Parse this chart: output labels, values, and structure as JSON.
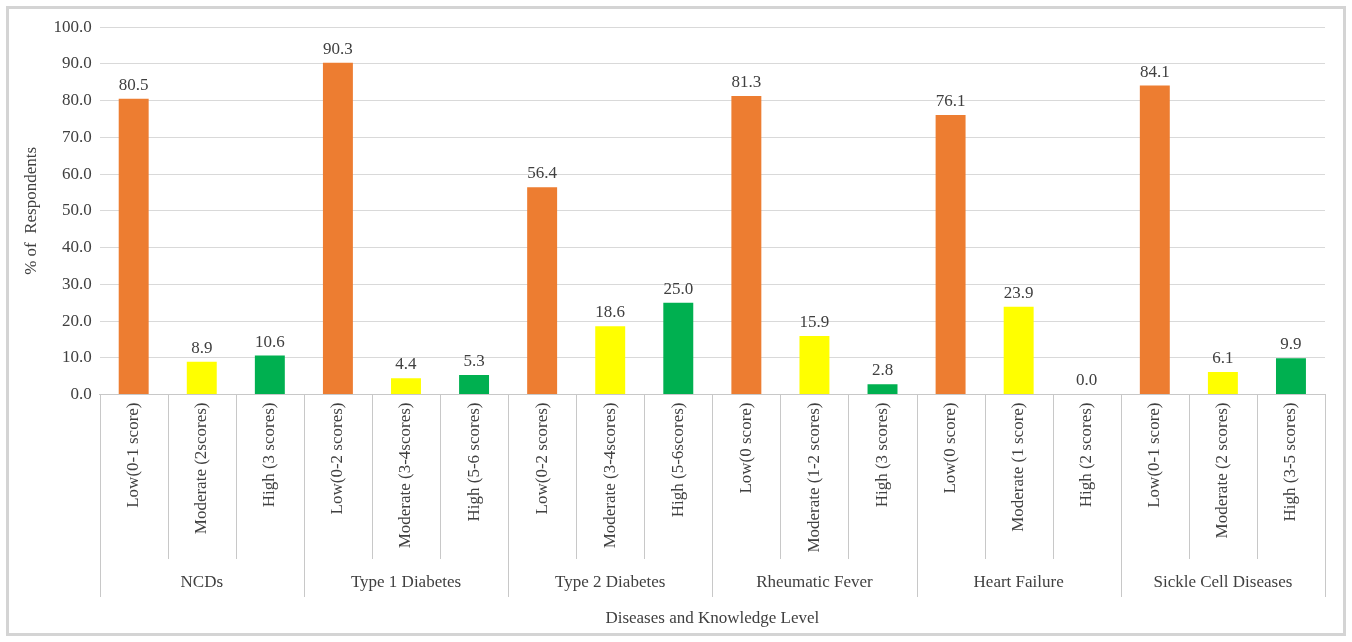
{
  "chart_data": {
    "type": "bar",
    "xlabel": "Diseases and Knowledge Level",
    "ylabel": "% of  Respondents",
    "categories": [
      "Low(0-1 score)",
      "Moderate (2scores)",
      "High (3 scores)",
      "Low(0-2 scores)",
      "Moderate (3-4scores)",
      "High (5-6 scores)",
      "Low(0-2 scores)",
      "Moderate (3-4scores)",
      "High (5-6scores)",
      "Low(0 score)",
      "Moderate (1-2 scores)",
      "High (3 scores)",
      "Low(0 score)",
      "Moderate (1 score)",
      "High (2 scores)",
      "Low(0-1 score)",
      "Moderate (2 scores)",
      "High (3-5 scores)"
    ],
    "values": [
      80.5,
      8.9,
      10.6,
      90.3,
      4.4,
      5.3,
      56.4,
      18.6,
      25.0,
      81.3,
      15.9,
      2.8,
      76.1,
      23.9,
      0.0,
      84.1,
      6.1,
      9.9
    ],
    "value_labels": [
      "80.5",
      "8.9",
      "10.6",
      "90.3",
      "4.4",
      "5.3",
      "56.4",
      "18.6",
      "25.0",
      "81.3",
      "15.9",
      "2.8",
      "76.1",
      "23.9",
      "0.0",
      "84.1",
      "6.1",
      "9.9"
    ],
    "colors": [
      "#ed7d31",
      "#ffff00",
      "#00b050",
      "#ed7d31",
      "#ffff00",
      "#00b050",
      "#ed7d31",
      "#ffff00",
      "#00b050",
      "#ed7d31",
      "#ffff00",
      "#00b050",
      "#ed7d31",
      "#ffff00",
      "#00b050",
      "#ed7d31",
      "#ffff00",
      "#00b050"
    ],
    "annotations": [
      "NCDs",
      "Type 1 Diabetes",
      "Type 2 Diabetes",
      "Rheumatic Fever",
      "Heart Failure",
      "Sickle Cell Diseases"
    ],
    "ylim": [
      0,
      100
    ],
    "yticks": [
      {
        "value": 0,
        "label": "0.0"
      },
      {
        "value": 10,
        "label": "10.0"
      },
      {
        "value": 20,
        "label": "20.0"
      },
      {
        "value": 30,
        "label": "30.0"
      },
      {
        "value": 40,
        "label": "40.0"
      },
      {
        "value": 50,
        "label": "50.0"
      },
      {
        "value": 60,
        "label": "60.0"
      },
      {
        "value": 70,
        "label": "70.0"
      },
      {
        "value": 80,
        "label": "80.0"
      },
      {
        "value": 90,
        "label": "90.0"
      },
      {
        "value": 100,
        "label": "100.0"
      }
    ],
    "grid": "y",
    "legend": false
  }
}
